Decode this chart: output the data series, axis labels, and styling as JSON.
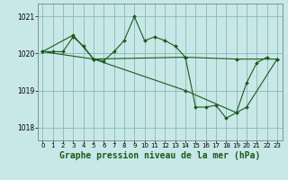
{
  "background_color": "#c8e8e8",
  "grid_color": "#88b8b8",
  "line_color": "#1a5c1a",
  "marker_color": "#1a5c1a",
  "xlabel": "Graphe pression niveau de la mer (hPa)",
  "xlabel_fontsize": 7.0,
  "ylim": [
    1017.65,
    1021.35
  ],
  "xlim": [
    -0.5,
    23.5
  ],
  "yticks": [
    1018,
    1019,
    1020,
    1021
  ],
  "xticks": [
    0,
    1,
    2,
    3,
    4,
    5,
    6,
    7,
    8,
    9,
    10,
    11,
    12,
    13,
    14,
    15,
    16,
    17,
    18,
    19,
    20,
    21,
    22,
    23
  ],
  "series": [
    {
      "x": [
        0,
        1,
        2,
        3,
        4,
        5,
        6,
        7,
        8,
        9,
        10,
        11,
        12,
        13,
        14,
        15,
        16,
        17,
        18,
        19,
        20,
        21,
        22
      ],
      "y": [
        1020.05,
        1020.05,
        1020.05,
        1020.45,
        1020.2,
        1019.85,
        1019.8,
        1020.05,
        1020.35,
        1021.0,
        1020.35,
        1020.45,
        1020.35,
        1020.2,
        1019.9,
        1018.55,
        1018.55,
        1018.6,
        1018.25,
        1018.4,
        1019.2,
        1019.75,
        1019.9
      ]
    },
    {
      "x": [
        0,
        3,
        5,
        14,
        19,
        23
      ],
      "y": [
        1020.05,
        1020.5,
        1019.85,
        1019.9,
        1019.85,
        1019.85
      ]
    },
    {
      "x": [
        0,
        5,
        14,
        19,
        20,
        23
      ],
      "y": [
        1020.05,
        1019.85,
        1019.0,
        1018.4,
        1018.55,
        1019.85
      ]
    }
  ]
}
